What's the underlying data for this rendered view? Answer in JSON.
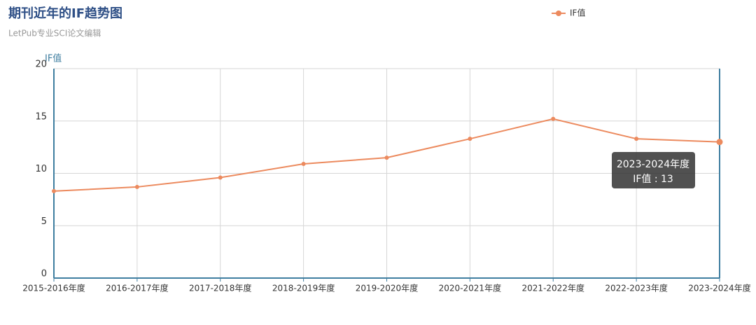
{
  "chart_data": {
    "type": "line",
    "title": "期刊近年的IF趋势图",
    "subtitle": "LetPub专业SCI论文编辑",
    "y_label": "IF值",
    "categories": [
      "2015-2016年度",
      "2016-2017年度",
      "2017-2018年度",
      "2018-2019年度",
      "2019-2020年度",
      "2020-2021年度",
      "2021-2022年度",
      "2022-2023年度",
      "2023-2024年度"
    ],
    "series": [
      {
        "name": "IF值",
        "color": "#ec8a5e",
        "values": [
          8.3,
          8.7,
          9.6,
          10.9,
          11.5,
          13.3,
          15.2,
          13.3,
          13
        ]
      }
    ],
    "ylim": [
      0,
      20
    ],
    "yticks": [
      0,
      5,
      10,
      15,
      20
    ],
    "grid": true,
    "legend": "top",
    "tooltip": {
      "title": "2023-2024年度",
      "text": "IF值 : 13"
    }
  }
}
